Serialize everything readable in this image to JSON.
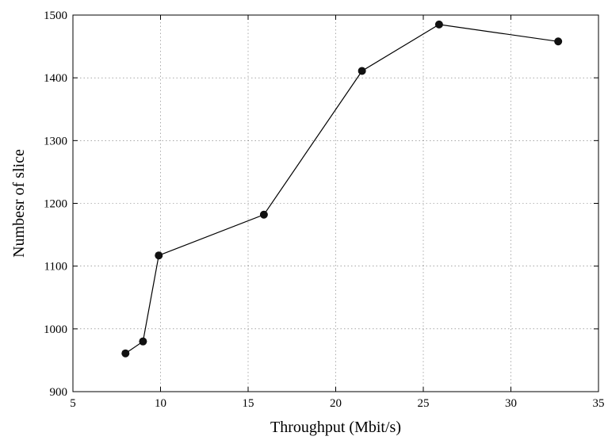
{
  "chart_data": {
    "type": "line",
    "title": "",
    "xlabel": "Throughput (Mbit/s)",
    "ylabel": "Numbesr of slice",
    "xlim": [
      5,
      35
    ],
    "ylim": [
      900,
      1500
    ],
    "x_ticks": [
      5,
      10,
      15,
      20,
      25,
      30,
      35
    ],
    "y_ticks": [
      900,
      1000,
      1100,
      1200,
      1300,
      1400,
      1500
    ],
    "grid": true,
    "legend": "none",
    "series": [
      {
        "color": "#000000",
        "marker": "filled-circle",
        "x": [
          8.0,
          9.0,
          9.9,
          15.9,
          21.5,
          25.9,
          32.7
        ],
        "y": [
          961,
          980,
          1117,
          1182,
          1411,
          1485,
          1458
        ]
      }
    ]
  }
}
